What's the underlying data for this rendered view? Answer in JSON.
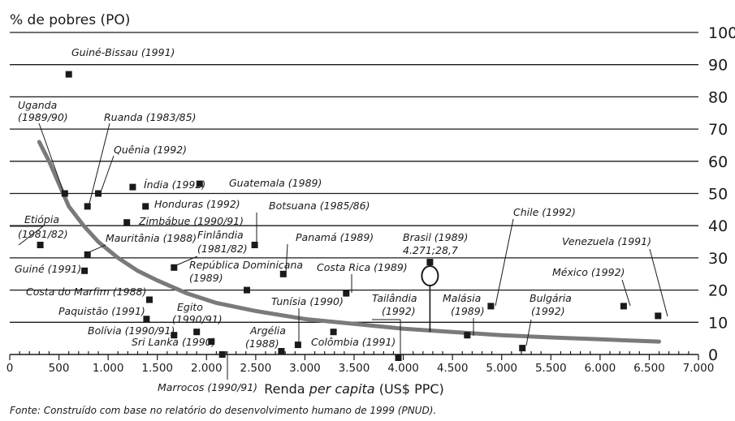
{
  "chart_data": {
    "type": "scatter",
    "ylabel": "% de pobres (PO)",
    "xlabel_parts": [
      "Renda ",
      "per capita",
      " (US$ PPC)"
    ],
    "xlim": [
      0,
      7000
    ],
    "ylim": [
      0,
      100
    ],
    "x_ticks": [
      0,
      500,
      1000,
      1500,
      2000,
      2500,
      3000,
      3500,
      4000,
      4500,
      5000,
      5500,
      6000,
      6500,
      7000
    ],
    "x_tick_labels": [
      "0",
      "500",
      "1.000",
      "1.500",
      "2.000",
      "2.500",
      "3.000",
      "3.500",
      "4.000",
      "4.500",
      "5.000",
      "5.500",
      "6.000",
      "6.500",
      "7.000"
    ],
    "y_ticks": [
      0,
      10,
      20,
      30,
      40,
      50,
      60,
      70,
      80,
      90,
      100
    ],
    "y_tick_labels": [
      "0",
      "10",
      "20",
      "30",
      "40",
      "50",
      "60",
      "70",
      "80",
      "90",
      "100"
    ],
    "grid": true,
    "source": "Fonte: Construído com base no relatório do desenvolvimento humano de 1999 (PNUD).",
    "points": [
      {
        "label": "Guiné-Bissau (1991)",
        "x": 600,
        "y": 87
      },
      {
        "label": "Uganda (1989/90)",
        "x": 560,
        "y": 50
      },
      {
        "label": "Ruanda (1983/85)",
        "x": 790,
        "y": 46
      },
      {
        "label": "Quênia (1992)",
        "x": 900,
        "y": 50
      },
      {
        "label": "Índia (1992)",
        "x": 1250,
        "y": 52
      },
      {
        "label": "Guatemala (1989)",
        "x": 1930,
        "y": 53
      },
      {
        "label": "Honduras (1992)",
        "x": 1380,
        "y": 46
      },
      {
        "label": "Zimbábue (1990/91)",
        "x": 1190,
        "y": 41
      },
      {
        "label": "Etiópia (1981/82)",
        "x": 310,
        "y": 34
      },
      {
        "label": "Mauritânia (1988)",
        "x": 790,
        "y": 31
      },
      {
        "label": "Guiné (1991)",
        "x": 760,
        "y": 26
      },
      {
        "label": "Finlândia (1981/82)",
        "x": 1670,
        "y": 27
      },
      {
        "label": "Botsuana (1985/86)",
        "x": 2490,
        "y": 34
      },
      {
        "label": "Panamá (1989)",
        "x": 2780,
        "y": 25
      },
      {
        "label": "República Dominicana (1989)",
        "x": 2410,
        "y": 20
      },
      {
        "label": "Costa do Marfim (1988)",
        "x": 1420,
        "y": 17
      },
      {
        "label": "Paquistão (1991)",
        "x": 1390,
        "y": 11
      },
      {
        "label": "Costa Rica (1989)",
        "x": 3420,
        "y": 19
      },
      {
        "label": "Brasil (1989) 4.271;28,7",
        "x": 4271,
        "y": 28.7
      },
      {
        "label": "Chile (1992)",
        "x": 4890,
        "y": 15
      },
      {
        "label": "Venezuela (1991)",
        "x": 6590,
        "y": 12
      },
      {
        "label": "México (1992)",
        "x": 6240,
        "y": 15
      },
      {
        "label": "Egito (1990/91)",
        "x": 1900,
        "y": 7
      },
      {
        "label": "Bolívia (1990/91)",
        "x": 1670,
        "y": 6
      },
      {
        "label": "Sri Lanka (1990)",
        "x": 2050,
        "y": 4
      },
      {
        "label": "Marrocos (1990/91)",
        "x": 2160,
        "y": 0
      },
      {
        "label": "Tunísia (1990)",
        "x": 2930,
        "y": 3
      },
      {
        "label": "Argélia (1988)",
        "x": 2760,
        "y": 1
      },
      {
        "label": "Colômbia (1991)",
        "x": 3290,
        "y": 7
      },
      {
        "label": "Tailândia (1992)",
        "x": 3950,
        "y": -1
      },
      {
        "label": "Malásia (1989)",
        "x": 4650,
        "y": 6
      },
      {
        "label": "Bulgária (1992)",
        "x": 5210,
        "y": 2
      }
    ],
    "trend_curve": [
      [
        300,
        66
      ],
      [
        400,
        60
      ],
      [
        500,
        53
      ],
      [
        600,
        46
      ],
      [
        750,
        40
      ],
      [
        900,
        35
      ],
      [
        1100,
        30
      ],
      [
        1300,
        26
      ],
      [
        1500,
        23
      ],
      [
        1800,
        19
      ],
      [
        2100,
        16
      ],
      [
        2500,
        13.5
      ],
      [
        3000,
        11
      ],
      [
        3500,
        9.5
      ],
      [
        4000,
        8
      ],
      [
        4500,
        7
      ],
      [
        5000,
        6
      ],
      [
        5500,
        5.3
      ],
      [
        6000,
        4.7
      ],
      [
        6600,
        4
      ]
    ]
  }
}
